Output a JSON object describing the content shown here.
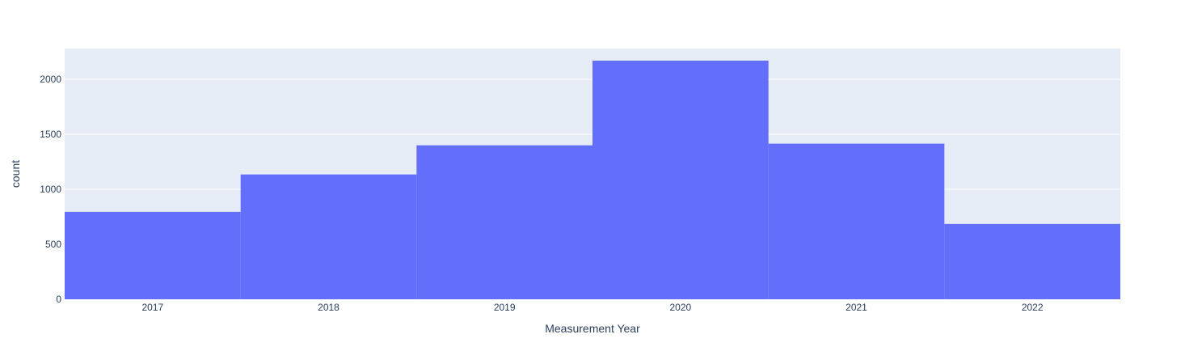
{
  "chart_data": {
    "type": "bar",
    "title": "",
    "xlabel": "Measurement Year",
    "ylabel": "count",
    "categories": [
      "2017",
      "2018",
      "2019",
      "2020",
      "2021",
      "2022"
    ],
    "values": [
      795,
      1135,
      1400,
      2170,
      1415,
      685
    ],
    "ylim": [
      0,
      2280
    ],
    "yticks": [
      0,
      500,
      1000,
      1500,
      2000
    ],
    "grid": true,
    "legend": "none",
    "colors": {
      "bar": "#636efa",
      "plot_background": "#e5ecf6",
      "gridline": "#ffffff",
      "text": "#2a3f5f"
    }
  }
}
